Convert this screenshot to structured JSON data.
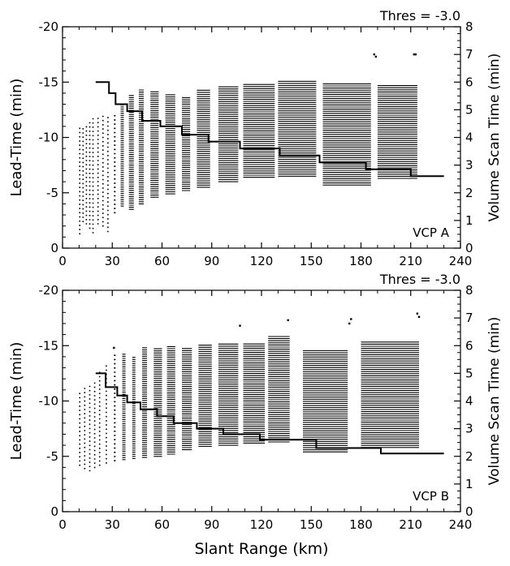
{
  "chart_data": [
    {
      "type": "scatter",
      "panel_label": "VCP A",
      "threshold_label": "Thres = -3.0",
      "xlabel": "",
      "ylabel": "Lead-Time (min)",
      "y2label": "Volume Scan Time (min)",
      "xlim": [
        0,
        240
      ],
      "ylim": [
        0,
        -20
      ],
      "y2lim": [
        0,
        8
      ],
      "xticks": [
        0,
        30,
        60,
        90,
        120,
        150,
        180,
        210,
        240
      ],
      "yticks": [
        0,
        -5,
        -10,
        -15,
        -20
      ],
      "y2ticks": [
        0,
        1,
        2,
        3,
        4,
        5,
        6,
        7,
        8
      ],
      "grid": false,
      "clusters": [
        {
          "x0": 10,
          "x1": 10,
          "ylow": -1.3,
          "yhigh": -10.9
        },
        {
          "x0": 12,
          "x1": 12,
          "ylow": -2.4,
          "yhigh": -11.0
        },
        {
          "x0": 14,
          "x1": 14,
          "ylow": -2.2,
          "yhigh": -11.3
        },
        {
          "x0": 16,
          "x1": 16,
          "ylow": -1.8,
          "yhigh": -11.5
        },
        {
          "x0": 18,
          "x1": 18,
          "ylow": -1.4,
          "yhigh": -11.8
        },
        {
          "x0": 21,
          "x1": 21,
          "ylow": -2.2,
          "yhigh": -12.0
        },
        {
          "x0": 24,
          "x1": 24,
          "ylow": -2.0,
          "yhigh": -12.0
        },
        {
          "x0": 27,
          "x1": 27,
          "ylow": -1.5,
          "yhigh": -11.8
        },
        {
          "x0": 31,
          "x1": 32,
          "ylow": -3.2,
          "yhigh": -12.3
        },
        {
          "x0": 35,
          "x1": 37,
          "ylow": -3.8,
          "yhigh": -13.0
        },
        {
          "x0": 40,
          "x1": 43,
          "ylow": -3.5,
          "yhigh": -13.8
        },
        {
          "x0": 46,
          "x1": 49,
          "ylow": -4.0,
          "yhigh": -14.3
        },
        {
          "x0": 53,
          "x1": 58,
          "ylow": -4.6,
          "yhigh": -14.3
        },
        {
          "x0": 62,
          "x1": 68,
          "ylow": -4.9,
          "yhigh": -14.0
        },
        {
          "x0": 72,
          "x1": 77,
          "ylow": -5.2,
          "yhigh": -13.7
        },
        {
          "x0": 81,
          "x1": 89,
          "ylow": -5.5,
          "yhigh": -14.3
        },
        {
          "x0": 94,
          "x1": 106,
          "ylow": -6.0,
          "yhigh": -14.6
        },
        {
          "x0": 109,
          "x1": 128,
          "ylow": -6.4,
          "yhigh": -14.8
        },
        {
          "x0": 130,
          "x1": 153,
          "ylow": -6.5,
          "yhigh": -15.2
        },
        {
          "x0": 157,
          "x1": 186,
          "ylow": -5.7,
          "yhigh": -14.9
        },
        {
          "x0": 190,
          "x1": 214,
          "ylow": -6.3,
          "yhigh": -14.8
        }
      ],
      "outliers": [
        {
          "x": 188,
          "y": -17.5
        },
        {
          "x": 189,
          "y": -17.3
        },
        {
          "x": 212,
          "y": -17.5
        },
        {
          "x": 213,
          "y": -17.5
        }
      ],
      "scan_time_steps": [
        {
          "x0": 20,
          "x1": 28,
          "y2": 6.0
        },
        {
          "x0": 28,
          "x1": 32,
          "y2": 5.6
        },
        {
          "x0": 32,
          "x1": 39,
          "y2": 5.2
        },
        {
          "x0": 39,
          "x1": 48,
          "y2": 4.95
        },
        {
          "x0": 48,
          "x1": 59,
          "y2": 4.6
        },
        {
          "x0": 59,
          "x1": 72,
          "y2": 4.4
        },
        {
          "x0": 72,
          "x1": 88,
          "y2": 4.1
        },
        {
          "x0": 88,
          "x1": 107,
          "y2": 3.85
        },
        {
          "x0": 107,
          "x1": 131,
          "y2": 3.6
        },
        {
          "x0": 131,
          "x1": 155,
          "y2": 3.35
        },
        {
          "x0": 155,
          "x1": 183,
          "y2": 3.1
        },
        {
          "x0": 183,
          "x1": 210,
          "y2": 2.85
        },
        {
          "x0": 210,
          "x1": 230,
          "y2": 2.6
        }
      ]
    },
    {
      "type": "scatter",
      "panel_label": "VCP B",
      "threshold_label": "Thres = -3.0",
      "xlabel": "Slant Range (km)",
      "ylabel": "Lead-Time (min)",
      "y2label": "Volume Scan Time (min)",
      "xlim": [
        0,
        240
      ],
      "ylim": [
        0,
        -20
      ],
      "y2lim": [
        0,
        8
      ],
      "xticks": [
        0,
        30,
        60,
        90,
        120,
        150,
        180,
        210,
        240
      ],
      "yticks": [
        0,
        -5,
        -10,
        -15,
        -20
      ],
      "y2ticks": [
        0,
        1,
        2,
        3,
        4,
        5,
        6,
        7,
        8
      ],
      "grid": false,
      "clusters": [
        {
          "x0": 10,
          "x1": 10,
          "ylow": -4.2,
          "yhigh": -10.8
        },
        {
          "x0": 13,
          "x1": 13,
          "ylow": -3.9,
          "yhigh": -11.3
        },
        {
          "x0": 16,
          "x1": 16,
          "ylow": -3.7,
          "yhigh": -11.6
        },
        {
          "x0": 19,
          "x1": 19,
          "ylow": -4.0,
          "yhigh": -11.9
        },
        {
          "x0": 22,
          "x1": 22,
          "ylow": -4.2,
          "yhigh": -12.6
        },
        {
          "x0": 26,
          "x1": 26,
          "ylow": -4.4,
          "yhigh": -13.5
        },
        {
          "x0": 31,
          "x1": 32,
          "ylow": -4.6,
          "yhigh": -14.2
        },
        {
          "x0": 36,
          "x1": 38,
          "ylow": -4.7,
          "yhigh": -14.3
        },
        {
          "x0": 42,
          "x1": 44,
          "ylow": -4.8,
          "yhigh": -14.1
        },
        {
          "x0": 48,
          "x1": 51,
          "ylow": -4.9,
          "yhigh": -14.9
        },
        {
          "x0": 55,
          "x1": 60,
          "ylow": -5.0,
          "yhigh": -14.9
        },
        {
          "x0": 63,
          "x1": 68,
          "ylow": -5.2,
          "yhigh": -15.0
        },
        {
          "x0": 72,
          "x1": 78,
          "ylow": -5.6,
          "yhigh": -14.8
        },
        {
          "x0": 82,
          "x1": 90,
          "ylow": -5.9,
          "yhigh": -15.2
        },
        {
          "x0": 94,
          "x1": 106,
          "ylow": -6.0,
          "yhigh": -15.3
        },
        {
          "x0": 109,
          "x1": 122,
          "ylow": -6.2,
          "yhigh": -15.3
        },
        {
          "x0": 124,
          "x1": 137,
          "ylow": -6.3,
          "yhigh": -16.0
        },
        {
          "x0": 145,
          "x1": 172,
          "ylow": -5.4,
          "yhigh": -14.7
        },
        {
          "x0": 180,
          "x1": 215,
          "ylow": -5.8,
          "yhigh": -15.5
        }
      ],
      "outliers": [
        {
          "x": 31,
          "y": -14.8
        },
        {
          "x": 107,
          "y": -16.8
        },
        {
          "x": 136,
          "y": -17.3
        },
        {
          "x": 173,
          "y": -17.0
        },
        {
          "x": 174,
          "y": -17.4
        },
        {
          "x": 214,
          "y": -17.9
        },
        {
          "x": 215,
          "y": -17.6
        }
      ],
      "scan_time_steps": [
        {
          "x0": 20,
          "x1": 26,
          "y2": 5.0
        },
        {
          "x0": 26,
          "x1": 33,
          "y2": 4.5
        },
        {
          "x0": 33,
          "x1": 39,
          "y2": 4.2
        },
        {
          "x0": 39,
          "x1": 47,
          "y2": 3.95
        },
        {
          "x0": 47,
          "x1": 57,
          "y2": 3.7
        },
        {
          "x0": 57,
          "x1": 67,
          "y2": 3.45
        },
        {
          "x0": 67,
          "x1": 81,
          "y2": 3.2
        },
        {
          "x0": 81,
          "x1": 97,
          "y2": 3.0
        },
        {
          "x0": 97,
          "x1": 119,
          "y2": 2.8
        },
        {
          "x0": 119,
          "x1": 153,
          "y2": 2.6
        },
        {
          "x0": 153,
          "x1": 192,
          "y2": 2.3
        },
        {
          "x0": 192,
          "x1": 230,
          "y2": 2.1
        }
      ]
    }
  ]
}
